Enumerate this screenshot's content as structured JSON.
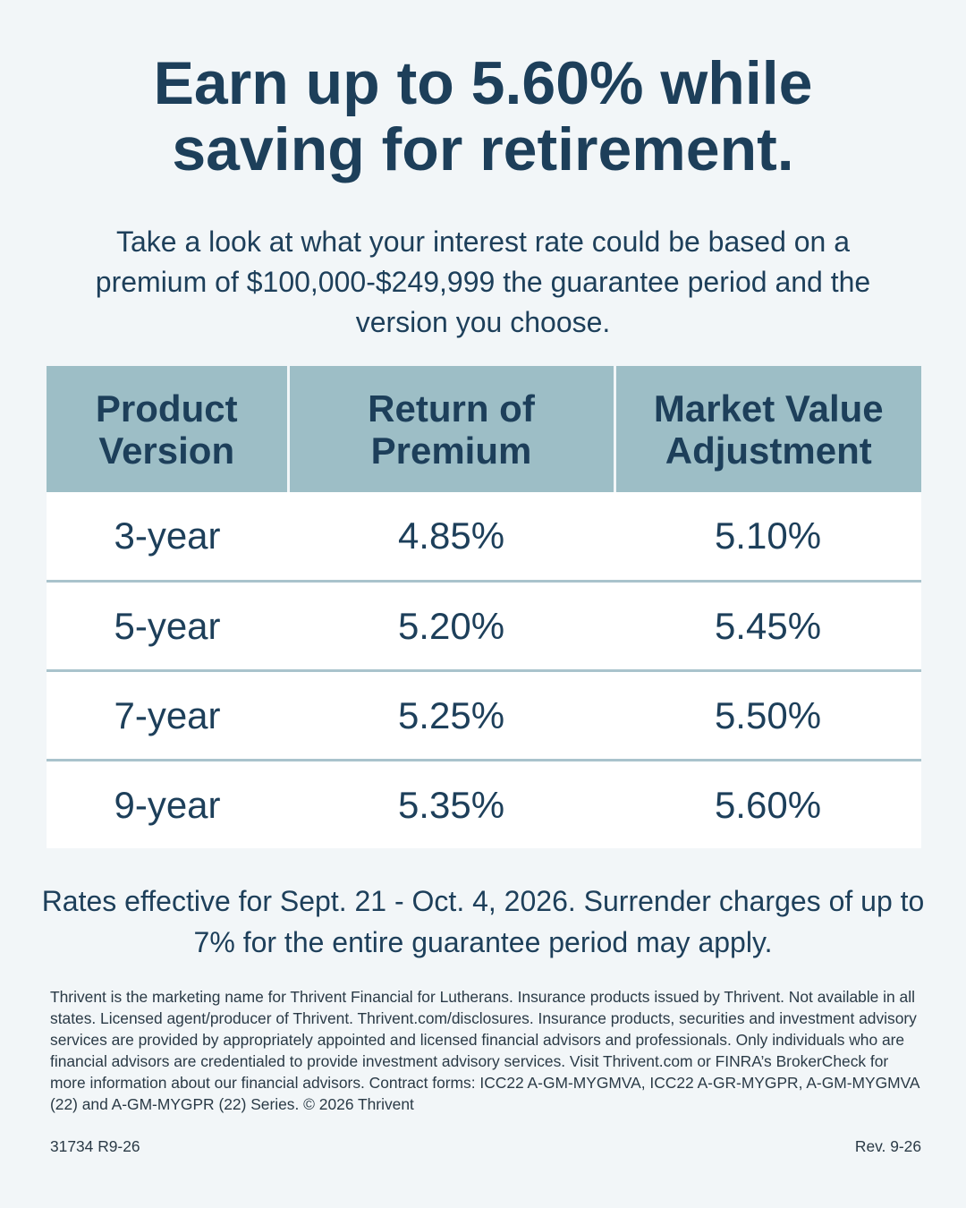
{
  "headline": {
    "line1": "Earn up to 5.60% while",
    "line2": "saving for retirement."
  },
  "intro": "Take a look at what your interest rate could be based on a premium of $100,000-$249,999 the guarantee period and the version you choose.",
  "table": {
    "headers": [
      {
        "line1": "Product",
        "line2": "Version"
      },
      {
        "line1": "Return of",
        "line2": "Premium"
      },
      {
        "line1": "Market Value",
        "line2": "Adjustment"
      }
    ],
    "rows": [
      {
        "version": "3-year",
        "return_of_premium": "4.85%",
        "market_value_adjustment": "5.10%"
      },
      {
        "version": "5-year",
        "return_of_premium": "5.20%",
        "market_value_adjustment": "5.45%"
      },
      {
        "version": "7-year",
        "return_of_premium": "5.25%",
        "market_value_adjustment": "5.50%"
      },
      {
        "version": "9-year",
        "return_of_premium": "5.35%",
        "market_value_adjustment": "5.60%"
      }
    ]
  },
  "note": "Rates effective for Sept. 21 - Oct. 4, 2026. Surrender charges of up to 7% for the entire guarantee period may apply.",
  "disclaimer": "Thrivent is the marketing name for Thrivent Financial for Lutherans. Insurance products issued by Thrivent. Not available in all states. Licensed agent/producer of Thrivent. Thrivent.com/disclosures. Insurance products, securities and investment advisory services are provided by appropriately appointed and licensed financial advisors and professionals. Only individuals who are financial advisors are credentialed to provide investment advisory services. Visit Thrivent.com or FINRA’s BrokerCheck for more information about our financial advisors. Contract forms: ICC22 A-GM-MYGMVA, ICC22 A-GR-MYGPR, A-GM-MYGMVA (22) and A-GM-MYGPR (22) Series. © 2026 Thrivent",
  "footer": {
    "code": "31734 R9-26",
    "revision": "Rev. 9-26"
  },
  "colors": {
    "text": "#1d3f5a",
    "background": "#f2f6f8",
    "header_fill": "#9dbec6",
    "row_divider": "#a9c3cc"
  }
}
